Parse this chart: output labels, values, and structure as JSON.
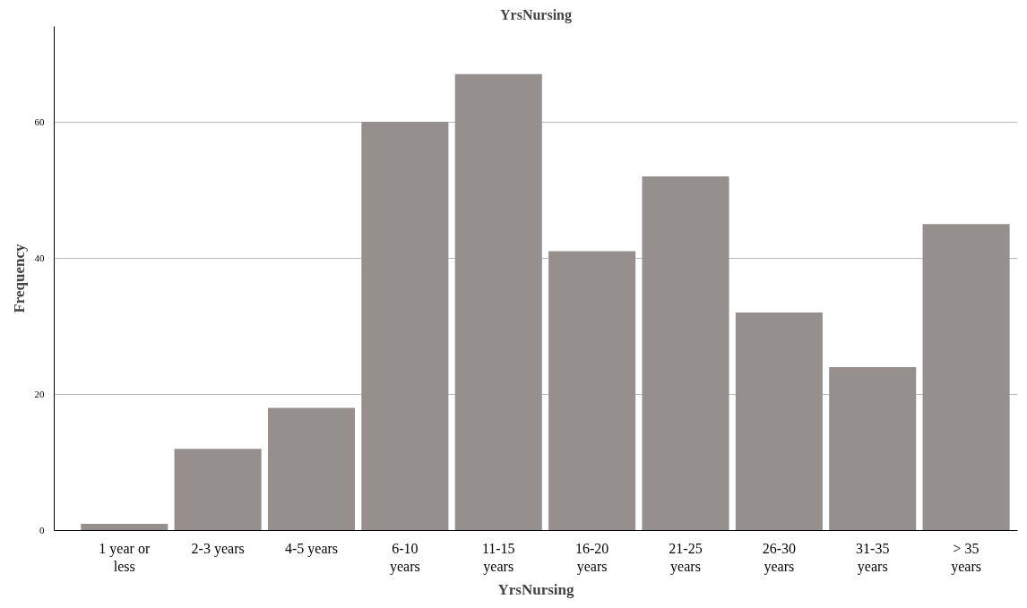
{
  "chart_data": {
    "type": "bar",
    "title": "YrsNursing",
    "xlabel": "YrsNursing",
    "ylabel": "Frequency",
    "categories": [
      "1 year or less",
      "2-3 years",
      "4-5 years",
      "6-10 years",
      "11-15 years",
      "16-20 years",
      "21-25 years",
      "26-30 years",
      "31-35 years",
      "> 35 years"
    ],
    "values": [
      1,
      12,
      18,
      60,
      67,
      41,
      52,
      32,
      24,
      45
    ],
    "color": "#958f8e",
    "ylim": [
      0,
      74
    ],
    "yticks": [
      0,
      20,
      40,
      60
    ],
    "grid": "y"
  }
}
